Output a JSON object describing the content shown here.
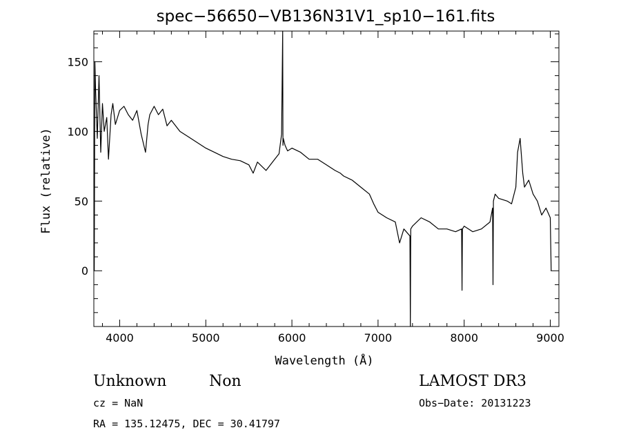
{
  "chart_data": {
    "type": "line",
    "title": "spec−56650−VB136N31V1_sp10−161.fits",
    "xlabel": "Wavelength (Å)",
    "ylabel": "Flux (relative)",
    "xlim": [
      3700,
      9100
    ],
    "ylim": [
      -40,
      172
    ],
    "x_ticks": [
      4000,
      5000,
      6000,
      7000,
      8000,
      9000
    ],
    "x_tick_labels": [
      "4000",
      "5000",
      "6000",
      "7000",
      "8000",
      "9000"
    ],
    "y_ticks": [
      0,
      50,
      100,
      150
    ],
    "y_tick_labels": [
      "0",
      "50",
      "100",
      "150"
    ],
    "grid": false,
    "legend": "none",
    "line_color": "#000000",
    "series": [
      {
        "x": [
          3705,
          3712,
          3720,
          3740,
          3760,
          3780,
          3800,
          3820,
          3850,
          3870,
          3900,
          3920,
          3950,
          4000,
          4050,
          4100,
          4150,
          4200,
          4250,
          4300,
          4330,
          4350,
          4400,
          4450,
          4500,
          4550,
          4600,
          4700,
          4800,
          4900,
          5000,
          5100,
          5200,
          5300,
          5400,
          5500,
          5550,
          5600,
          5700,
          5800,
          5850,
          5880,
          5893,
          5896,
          5900,
          5920,
          5950,
          6000,
          6100,
          6200,
          6300,
          6400,
          6500,
          6563,
          6600,
          6700,
          6800,
          6900,
          6950,
          7000,
          7100,
          7200,
          7250,
          7300,
          7370,
          7375,
          7380,
          7400,
          7500,
          7600,
          7700,
          7800,
          7900,
          7970,
          7975,
          7980,
          8000,
          8100,
          8200,
          8300,
          8330,
          8335,
          8340,
          8360,
          8400,
          8500,
          8550,
          8600,
          8620,
          8650,
          8680,
          8700,
          8750,
          8800,
          8850,
          8900,
          8950,
          9000,
          9010
        ],
        "y": [
          0,
          150,
          130,
          95,
          140,
          85,
          120,
          100,
          110,
          80,
          112,
          120,
          105,
          115,
          118,
          112,
          108,
          115,
          98,
          85,
          105,
          112,
          118,
          112,
          116,
          104,
          108,
          100,
          96,
          92,
          88,
          85,
          82,
          80,
          79,
          76,
          70,
          78,
          72,
          80,
          84,
          98,
          172,
          90,
          95,
          90,
          86,
          88,
          85,
          80,
          80,
          76,
          72,
          70,
          68,
          65,
          60,
          55,
          48,
          42,
          38,
          35,
          20,
          30,
          25,
          -40,
          30,
          32,
          38,
          35,
          30,
          30,
          28,
          30,
          -14,
          30,
          32,
          28,
          30,
          35,
          45,
          -10,
          50,
          55,
          52,
          50,
          48,
          60,
          85,
          95,
          70,
          60,
          65,
          55,
          50,
          40,
          45,
          38,
          0
        ]
      }
    ]
  },
  "labels": {
    "class_text": "Unknown",
    "subclass_text": "Non",
    "survey_text": "LAMOST DR3",
    "cz_text": "cz = NaN",
    "obs_date_text": "Obs−Date: 20131223",
    "coords_text": "RA = 135.12475, DEC =  30.41797"
  }
}
